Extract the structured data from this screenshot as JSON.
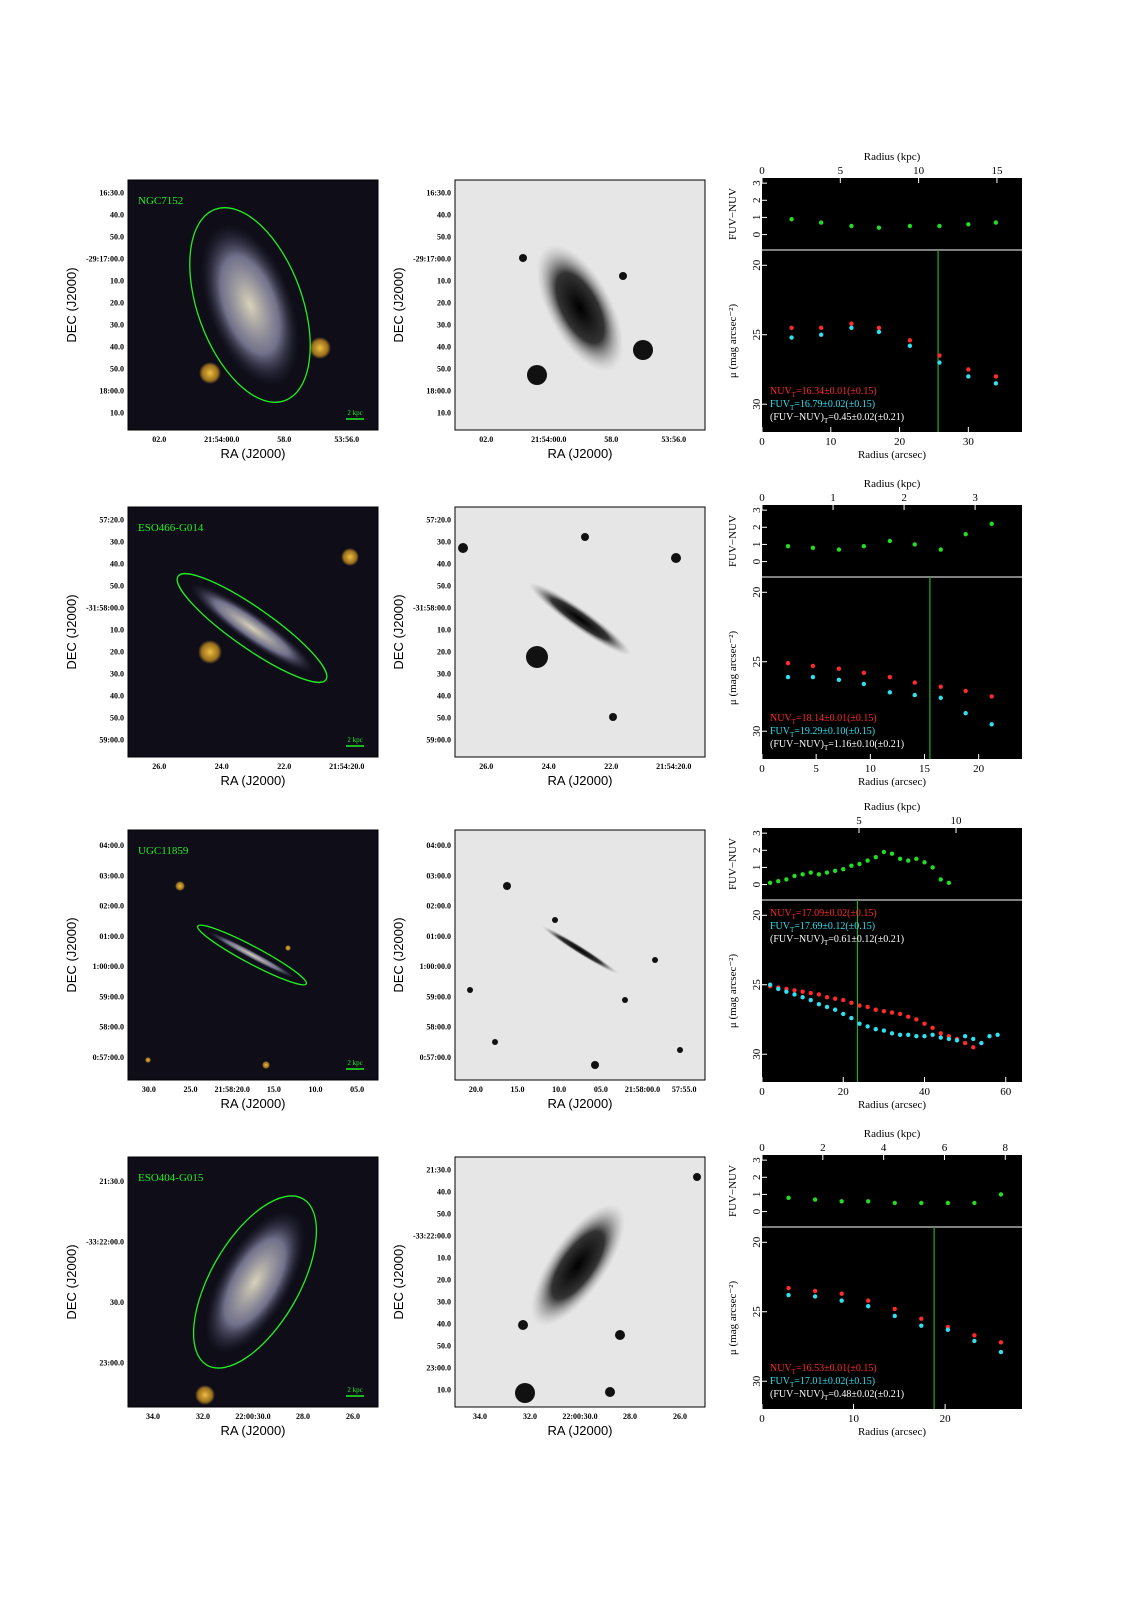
{
  "axis_labels": {
    "ra": "RA (J2000)",
    "dec": "DEC (J2000)"
  },
  "images": [
    {
      "name": "NGC7152",
      "scale_label": "2 kpc",
      "color": {
        "ra_ticks": [
          "02.0",
          "21:54:00.0",
          "58.0",
          "53:56.0"
        ],
        "dec_ticks": [
          "16:30.0",
          "40.0",
          "50.0",
          "-29:17:00.0",
          "10.0",
          "20.0",
          "30.0",
          "40.0",
          "50.0",
          "18:00.0",
          "10.0"
        ]
      },
      "gray": {
        "ra_ticks": [
          "02.0",
          "21:54:00.0",
          "58.0",
          "53:56.0"
        ],
        "dec_ticks": [
          "16:30.0",
          "40.0",
          "50.0",
          "-29:17:00.0",
          "10.0",
          "20.0",
          "30.0",
          "40.0",
          "50.0",
          "18:00.0",
          "10.0"
        ]
      }
    },
    {
      "name": "ESO466-G014",
      "scale_label": "2 kpc",
      "color": {
        "ra_ticks": [
          "26.0",
          "24.0",
          "22.0",
          "21:54:20.0"
        ],
        "dec_ticks": [
          "57:20.0",
          "30.0",
          "40.0",
          "50.0",
          "-31:58:00.0",
          "10.0",
          "20.0",
          "30.0",
          "40.0",
          "50.0",
          "59:00.0"
        ]
      },
      "gray": {
        "ra_ticks": [
          "26.0",
          "24.0",
          "22.0",
          "21:54:20.0"
        ],
        "dec_ticks": [
          "57:20.0",
          "30.0",
          "40.0",
          "50.0",
          "-31:58:00.0",
          "10.0",
          "20.0",
          "30.0",
          "40.0",
          "50.0",
          "59:00.0"
        ]
      }
    },
    {
      "name": "UGC11859",
      "scale_label": "2 kpc",
      "color": {
        "ra_ticks": [
          "30.0",
          "25.0",
          "21:58:20.0",
          "15.0",
          "10.0",
          "05.0"
        ],
        "dec_ticks": [
          "04:00.0",
          "03:00.0",
          "02:00.0",
          "01:00.0",
          "1:00:00.0",
          "59:00.0",
          "58:00.0",
          "0:57:00.0"
        ]
      },
      "gray": {
        "ra_ticks": [
          "20.0",
          "15.0",
          "10.0",
          "05.0",
          "21:58:00.0",
          "57:55.0"
        ],
        "dec_ticks": [
          "04:00.0",
          "03:00.0",
          "02:00.0",
          "01:00.0",
          "1:00:00.0",
          "59:00.0",
          "58:00.0",
          "0:57:00.0"
        ]
      }
    },
    {
      "name": "ESO404-G015",
      "scale_label": "2 kpc",
      "color": {
        "ra_ticks": [
          "34.0",
          "32.0",
          "22:00:30.0",
          "28.0",
          "26.0"
        ],
        "dec_ticks": [
          "21:30.0",
          "-33:22:00.0",
          "30.0",
          "23:00.0"
        ]
      },
      "gray": {
        "ra_ticks": [
          "34.0",
          "32.0",
          "22:00:30.0",
          "28.0",
          "26.0"
        ],
        "dec_ticks": [
          "21:30.0",
          "40.0",
          "50.0",
          "-33:22:00.0",
          "10.0",
          "20.0",
          "30.0",
          "40.0",
          "50.0",
          "23:00.0",
          "10.0"
        ]
      }
    }
  ],
  "chart_data": [
    {
      "type": "scatter",
      "x2_label": "Radius (kpc)",
      "x2lim": [
        0,
        16.6
      ],
      "x2ticks": [
        0,
        5,
        10,
        15
      ],
      "x_label": "Radius (arcsec)",
      "xlim": [
        0,
        37.8
      ],
      "xticks": [
        0,
        10,
        20,
        30
      ],
      "vline_x": 25.6,
      "vline_color": "#22aa22",
      "color_panel": {
        "ylabel": "FUV−NUV",
        "ylim": [
          -0.9,
          3.3
        ],
        "yticks": [
          0,
          1,
          2,
          3
        ],
        "color": "#22dd22",
        "x": [
          4.3,
          8.6,
          13,
          17,
          21.5,
          25.8,
          30,
          34
        ],
        "values": [
          0.9,
          0.7,
          0.5,
          0.4,
          0.5,
          0.5,
          0.6,
          0.7
        ]
      },
      "mag_panel": {
        "ylabel": "μ (mag arcsec⁻²)",
        "ylim": [
          32,
          18.9
        ],
        "yticks": [
          20,
          25,
          30
        ],
        "x": [
          4.3,
          8.6,
          13,
          17,
          21.5,
          25.8,
          30,
          34
        ],
        "series": [
          {
            "color": "#ff2a2a",
            "values": [
              24.5,
              24.5,
              24.2,
              24.5,
              25.4,
              26.5,
              27.5,
              28
            ]
          },
          {
            "color": "#30e0f0",
            "values": [
              25.2,
              25,
              24.5,
              24.8,
              25.8,
              27,
              28,
              28.5
            ]
          }
        ]
      },
      "annotation_corner": "lower left",
      "annotations": [
        {
          "label": "NUV",
          "sub": "T",
          "text": "=16.34±0.01(±0.15)",
          "color": "#ff2a2a"
        },
        {
          "label": "FUV",
          "sub": "T",
          "text": "=16.79±0.02(±0.15)",
          "color": "#30e0f0"
        },
        {
          "label": "(FUV−NUV)",
          "sub": "T",
          "text": "=0.45±0.02(±0.21)",
          "color": "#ffffff"
        }
      ]
    },
    {
      "type": "scatter",
      "x2_label": "Radius (kpc)",
      "x2lim": [
        0,
        3.66
      ],
      "x2ticks": [
        0,
        1,
        2,
        3
      ],
      "x_label": "Radius (arcsec)",
      "xlim": [
        0,
        24
      ],
      "xticks": [
        0,
        5,
        10,
        15,
        20
      ],
      "vline_x": 15.5,
      "vline_color": "#22aa22",
      "color_panel": {
        "ylabel": "FUV−NUV",
        "ylim": [
          -0.9,
          3.3
        ],
        "yticks": [
          0,
          1,
          2,
          3
        ],
        "color": "#22dd22",
        "x": [
          2.4,
          4.7,
          7.1,
          9.4,
          11.8,
          14.1,
          16.5,
          18.8,
          21.2
        ],
        "values": [
          0.9,
          0.8,
          0.7,
          0.9,
          1.2,
          1,
          0.7,
          1.6,
          2.2
        ]
      },
      "mag_panel": {
        "ylabel": "μ (mag arcsec⁻²)",
        "ylim": [
          32,
          18.9
        ],
        "yticks": [
          20,
          25,
          30
        ],
        "x": [
          2.4,
          4.7,
          7.1,
          9.4,
          11.8,
          14.1,
          16.5,
          18.8,
          21.2
        ],
        "series": [
          {
            "color": "#ff2a2a",
            "values": [
              25.1,
              25.3,
              25.5,
              25.8,
              26.1,
              26.5,
              26.8,
              27.1,
              27.5
            ]
          },
          {
            "color": "#30e0f0",
            "values": [
              26.1,
              26.1,
              26.3,
              26.6,
              27.2,
              27.4,
              27.6,
              28.7,
              29.5
            ]
          }
        ]
      },
      "annotation_corner": "lower left",
      "annotations": [
        {
          "label": "NUV",
          "sub": "T",
          "text": "=18.14±0.01(±0.15)",
          "color": "#ff2a2a"
        },
        {
          "label": "FUV",
          "sub": "T",
          "text": "=19.29±0.10(±0.15)",
          "color": "#30e0f0"
        },
        {
          "label": "(FUV−NUV)",
          "sub": "T",
          "text": "=1.16±0.10(±0.21)",
          "color": "#ffffff"
        }
      ]
    },
    {
      "type": "scatter",
      "x2_label": "Radius (kpc)",
      "x2lim": [
        0,
        13.4
      ],
      "x2ticks": [
        5,
        10
      ],
      "x_label": "Radius (arcsec)",
      "xlim": [
        0,
        64
      ],
      "xticks": [
        0,
        20,
        40,
        60
      ],
      "vline_x": 23.5,
      "vline_color": "#22aa22",
      "color_panel": {
        "ylabel": "FUV−NUV",
        "ylim": [
          -0.9,
          3.3
        ],
        "yticks": [
          0,
          1,
          2,
          3
        ],
        "color": "#22dd22",
        "x": [
          2,
          4,
          6,
          8,
          10,
          12,
          14,
          16,
          18,
          20,
          22,
          24,
          26,
          28,
          30,
          32,
          34,
          36,
          38,
          40,
          42,
          44,
          46
        ],
        "values": [
          0.1,
          0.2,
          0.3,
          0.5,
          0.6,
          0.7,
          0.6,
          0.7,
          0.8,
          0.9,
          1.1,
          1.2,
          1.4,
          1.6,
          1.9,
          1.8,
          1.5,
          1.4,
          1.5,
          1.3,
          1.0,
          0.3,
          0.1
        ]
      },
      "mag_panel": {
        "ylabel": "μ (mag arcsec⁻²)",
        "ylim": [
          32,
          18.9
        ],
        "yticks": [
          20,
          25,
          30
        ],
        "x": [
          2,
          4,
          6,
          8,
          10,
          12,
          14,
          16,
          18,
          20,
          22,
          24,
          26,
          28,
          30,
          32,
          34,
          36,
          38,
          40,
          42,
          44,
          46,
          48,
          50,
          52,
          54,
          56,
          58
        ],
        "series": [
          {
            "color": "#ff2a2a",
            "values": [
              25.1,
              25.2,
              25.3,
              25.4,
              25.5,
              25.6,
              25.7,
              25.9,
              26.0,
              26.1,
              26.3,
              26.5,
              26.6,
              26.8,
              26.9,
              27.0,
              27.1,
              27.3,
              27.5,
              27.8,
              28.1,
              28.5,
              28.7,
              28.9,
              29.2,
              29.5,
              null,
              null,
              null
            ]
          },
          {
            "color": "#30e0f0",
            "values": [
              25.0,
              25.3,
              25.5,
              25.7,
              25.9,
              26.1,
              26.4,
              26.6,
              26.8,
              27.1,
              27.4,
              27.8,
              28.0,
              28.2,
              28.3,
              28.5,
              28.6,
              28.6,
              28.7,
              28.7,
              28.6,
              28.8,
              28.9,
              29.0,
              28.7,
              28.9,
              29.2,
              28.7,
              28.6
            ]
          }
        ]
      },
      "annotation_corner": "upper left",
      "annotations": [
        {
          "label": "NUV",
          "sub": "T",
          "text": "=17.09±0.02(±0.15)",
          "color": "#ff2a2a"
        },
        {
          "label": "FUV",
          "sub": "T",
          "text": "=17.69±0.12(±0.15)",
          "color": "#30e0f0"
        },
        {
          "label": "(FUV−NUV)",
          "sub": "T",
          "text": "=0.61±0.12(±0.21)",
          "color": "#ffffff"
        }
      ]
    },
    {
      "type": "scatter",
      "x2_label": "Radius (kpc)",
      "x2lim": [
        0,
        8.55
      ],
      "x2ticks": [
        0,
        2,
        4,
        6,
        8
      ],
      "x_label": "Radius (arcsec)",
      "xlim": [
        0,
        28.4
      ],
      "xticks": [
        0,
        10,
        20
      ],
      "vline_x": 18.8,
      "vline_color": "#22aa22",
      "color_panel": {
        "ylabel": "FUV−NUV",
        "ylim": [
          -0.9,
          3.3
        ],
        "yticks": [
          0,
          1,
          2,
          3
        ],
        "color": "#22dd22",
        "x": [
          2.9,
          5.8,
          8.7,
          11.6,
          14.5,
          17.4,
          20.3,
          23.2,
          26.1
        ],
        "values": [
          0.8,
          0.7,
          0.6,
          0.6,
          0.5,
          0.5,
          0.5,
          0.5,
          1.0
        ]
      },
      "mag_panel": {
        "ylabel": "μ (mag arcsec⁻²)",
        "ylim": [
          32,
          18.9
        ],
        "yticks": [
          20,
          25,
          30
        ],
        "x": [
          2.9,
          5.8,
          8.7,
          11.6,
          14.5,
          17.4,
          20.3,
          23.2,
          26.1
        ],
        "series": [
          {
            "color": "#ff2a2a",
            "values": [
              23.3,
              23.5,
              23.7,
              24.2,
              24.8,
              25.5,
              26.1,
              26.7,
              27.2
            ]
          },
          {
            "color": "#30e0f0",
            "values": [
              23.8,
              23.9,
              24.2,
              24.6,
              25.3,
              26.0,
              26.3,
              27.1,
              27.9
            ]
          }
        ]
      },
      "annotation_corner": "lower left",
      "annotations": [
        {
          "label": "NUV",
          "sub": "T",
          "text": "=16.53±0.01(±0.15)",
          "color": "#ff2a2a"
        },
        {
          "label": "FUV",
          "sub": "T",
          "text": "=17.01±0.02(±0.15)",
          "color": "#30e0f0"
        },
        {
          "label": "(FUV−NUV)",
          "sub": "T",
          "text": "=0.48±0.02(±0.21)",
          "color": "#ffffff"
        }
      ]
    }
  ]
}
